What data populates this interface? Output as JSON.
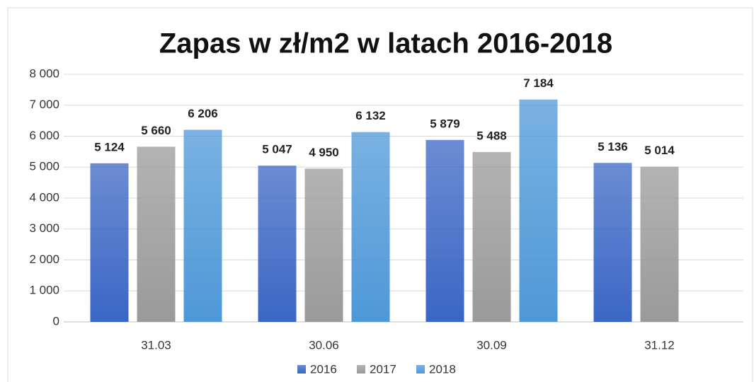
{
  "chart_data": {
    "type": "bar",
    "title": "Zapas w zł/m2 w latach 2016-2018",
    "categories": [
      "31.03",
      "30.06",
      "30.09",
      "31.12"
    ],
    "series": [
      {
        "name": "2016",
        "color": "#3a66c4",
        "values": [
          5124,
          5047,
          5879,
          5136
        ],
        "value_labels": [
          "5 124",
          "5 047",
          "5 879",
          "5 136"
        ]
      },
      {
        "name": "2017",
        "color": "#9a9a9a",
        "values": [
          5660,
          4950,
          5488,
          5014
        ],
        "value_labels": [
          "5 660",
          "4 950",
          "5 488",
          "5 014"
        ]
      },
      {
        "name": "2018",
        "color": "#4e98d8",
        "values": [
          6206,
          6132,
          7184,
          null
        ],
        "value_labels": [
          "6 206",
          "6 132",
          "7 184",
          null
        ]
      }
    ],
    "ylim": [
      0,
      8000
    ],
    "yticks": [
      0,
      {
        "value": 1000,
        "label": "1 000"
      },
      {
        "value": 2000,
        "label": "2 000"
      },
      {
        "value": 3000,
        "label": "3 000"
      },
      {
        "value": 4000,
        "label": "4 000"
      },
      {
        "value": 5000,
        "label": "5 000"
      },
      {
        "value": 6000,
        "label": "6 000"
      },
      {
        "value": 7000,
        "label": "7 000"
      },
      {
        "value": 8000,
        "label": "8 000"
      }
    ],
    "grid": true,
    "legend": "bottom"
  }
}
